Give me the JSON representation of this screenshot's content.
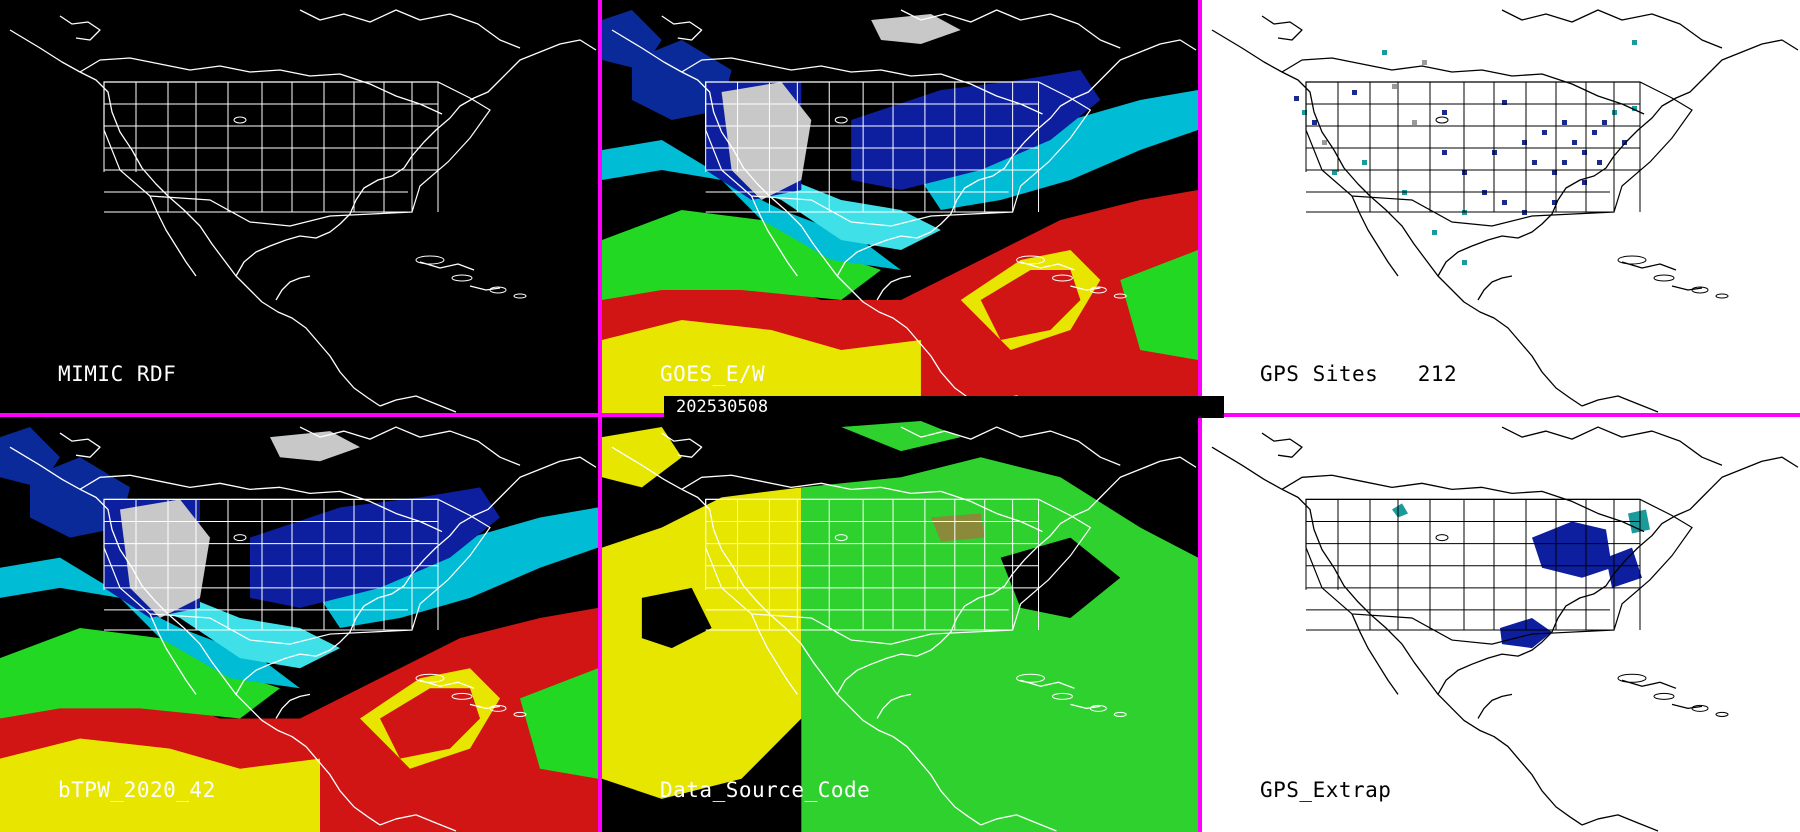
{
  "date_label": "202530508",
  "colors": {
    "divider": "#ff00ff",
    "outline_on_dark": "#ffffff",
    "outline_on_light": "#000000"
  },
  "panels": [
    {
      "id": "mimic-rdf",
      "label": "MIMIC RDF",
      "background": "dark",
      "field": "none"
    },
    {
      "id": "goes-ew",
      "label": "GOES_E/W",
      "background": "dark",
      "field": "tpw"
    },
    {
      "id": "gps-sites",
      "label": "GPS Sites   212",
      "background": "light",
      "field": "sites"
    },
    {
      "id": "btpw",
      "label": "bTPW_2020_42",
      "background": "dark",
      "field": "tpw"
    },
    {
      "id": "data-source-code",
      "label": "Data_Source_Code",
      "background": "dark",
      "field": "source"
    },
    {
      "id": "gps-extrap",
      "label": "GPS_Extrap",
      "background": "light",
      "field": "extrap"
    }
  ]
}
